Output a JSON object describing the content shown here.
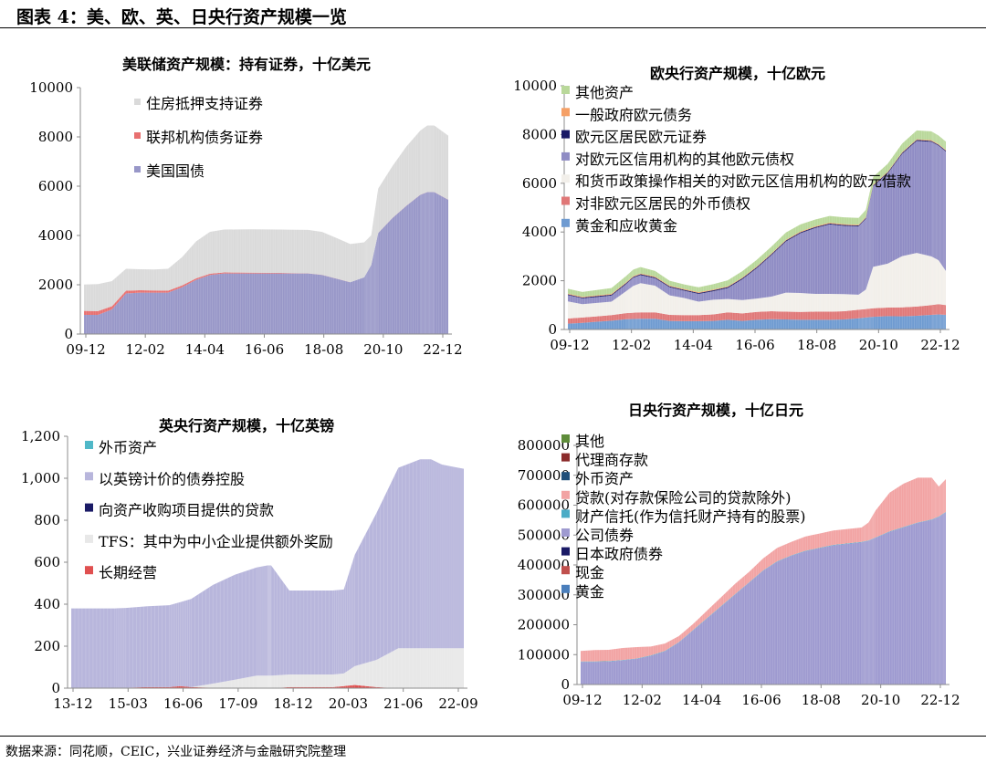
{
  "figure_title": "图表 4：美、欧、英、日央行资产规模一览",
  "source": "数据来源：同花顺，CEIC，兴业证券经济与金融研究院整理",
  "chart_data": [
    {
      "id": "fed",
      "type": "area",
      "stacked": true,
      "title": "美联储资产规模：持有证券，十亿美元",
      "xlabel": "",
      "ylabel": "",
      "ylim": [
        0,
        10000
      ],
      "yticks": [
        "0",
        "2000",
        "4000",
        "6000",
        "8000",
        "10000"
      ],
      "x": [
        "09-12",
        "10-06",
        "10-12",
        "11-06",
        "11-12",
        "12-06",
        "12-12",
        "13-06",
        "13-12",
        "14-06",
        "14-12",
        "15-06",
        "15-12",
        "16-06",
        "16-12",
        "17-06",
        "17-12",
        "18-06",
        "18-12",
        "19-06",
        "19-12",
        "20-03",
        "20-06",
        "20-12",
        "21-06",
        "21-12",
        "22-03",
        "22-06",
        "22-12"
      ],
      "xticks": [
        "09-12",
        "12-02",
        "14-04",
        "16-06",
        "18-08",
        "20-10",
        "22-12"
      ],
      "legend_position": "top-left",
      "grid": false,
      "series": [
        {
          "name": "美国国债",
          "color": "#9897c8",
          "values": [
            780,
            780,
            1000,
            1650,
            1680,
            1680,
            1680,
            1900,
            2200,
            2400,
            2460,
            2460,
            2460,
            2460,
            2460,
            2460,
            2460,
            2400,
            2250,
            2100,
            2300,
            2800,
            4100,
            4700,
            5200,
            5650,
            5760,
            5760,
            5450
          ]
        },
        {
          "name": "联邦机构债务证券",
          "color": "#e87070",
          "values": [
            160,
            150,
            130,
            110,
            100,
            90,
            80,
            70,
            60,
            50,
            40,
            35,
            30,
            25,
            20,
            10,
            5,
            5,
            3,
            3,
            3,
            3,
            3,
            3,
            3,
            3,
            3,
            3,
            3
          ]
        },
        {
          "name": "住房抵押支持证券",
          "color": "#dadada",
          "values": [
            1070,
            1100,
            1020,
            890,
            850,
            850,
            890,
            1150,
            1500,
            1700,
            1740,
            1750,
            1760,
            1760,
            1760,
            1760,
            1760,
            1740,
            1650,
            1550,
            1420,
            1200,
            1800,
            2100,
            2400,
            2600,
            2700,
            2700,
            2600
          ]
        }
      ]
    },
    {
      "id": "ecb",
      "type": "area",
      "stacked": true,
      "title": "欧央行资产规模，十亿欧元",
      "xlabel": "",
      "ylabel": "",
      "ylim": [
        0,
        10000
      ],
      "yticks": [
        "0",
        "2000",
        "4000",
        "6000",
        "8000",
        "10000"
      ],
      "x": [
        "09-12",
        "10-06",
        "10-12",
        "11-06",
        "11-12",
        "12-03",
        "12-06",
        "12-12",
        "13-06",
        "13-12",
        "14-06",
        "14-12",
        "15-06",
        "15-12",
        "16-06",
        "16-12",
        "17-06",
        "17-12",
        "18-06",
        "18-12",
        "19-06",
        "19-12",
        "20-03",
        "20-06",
        "20-12",
        "21-06",
        "21-12",
        "22-06",
        "22-09",
        "22-12"
      ],
      "xticks": [
        "09-12",
        "12-02",
        "14-04",
        "16-06",
        "18-08",
        "20-10",
        "22-12"
      ],
      "legend_position": "top-left",
      "grid": false,
      "series": [
        {
          "name": "黄金和应收黄金",
          "color": "#6f9bd1",
          "values": [
            240,
            270,
            320,
            360,
            420,
            430,
            440,
            440,
            350,
            340,
            340,
            350,
            400,
            350,
            400,
            420,
            410,
            400,
            400,
            400,
            410,
            460,
            490,
            520,
            550,
            540,
            560,
            600,
            620,
            600
          ]
        },
        {
          "name": "对非欧元区居民的外币债权",
          "color": "#e07878",
          "values": [
            210,
            220,
            220,
            230,
            250,
            260,
            260,
            260,
            250,
            250,
            250,
            270,
            300,
            310,
            320,
            330,
            320,
            320,
            330,
            330,
            340,
            350,
            350,
            350,
            350,
            370,
            380,
            400,
            420,
            400
          ]
        },
        {
          "name": "和货币政策操作相关的对欧元区信用机构的欧元借款",
          "color": "#f2efea",
          "values": [
            700,
            550,
            550,
            550,
            900,
            1100,
            1200,
            1100,
            800,
            700,
            550,
            600,
            550,
            550,
            550,
            600,
            780,
            780,
            730,
            730,
            700,
            620,
            800,
            1700,
            1800,
            2100,
            2200,
            2000,
            1800,
            1400
          ]
        },
        {
          "name": "对欧元区信用机构的其他欧元债权",
          "color": "#8f8cc4",
          "values": [
            260,
            240,
            240,
            250,
            290,
            330,
            330,
            300,
            330,
            300,
            320,
            350,
            450,
            850,
            1250,
            1700,
            2100,
            2450,
            2700,
            2850,
            2800,
            2800,
            2900,
            3300,
            3700,
            4200,
            4600,
            4700,
            4700,
            4900
          ]
        },
        {
          "name": "欧元区居民欧元证券",
          "color": "#1a1a66",
          "values": [
            30,
            30,
            40,
            40,
            40,
            40,
            40,
            40,
            40,
            40,
            40,
            40,
            40,
            40,
            40,
            40,
            40,
            40,
            40,
            40,
            40,
            40,
            40,
            40,
            40,
            40,
            40,
            40,
            40,
            40
          ]
        },
        {
          "name": "一般政府欧元债务",
          "color": "#f5a066",
          "values": [
            30,
            30,
            30,
            30,
            30,
            30,
            30,
            30,
            30,
            30,
            30,
            30,
            30,
            30,
            30,
            30,
            30,
            30,
            30,
            30,
            30,
            30,
            30,
            30,
            30,
            30,
            30,
            30,
            30,
            30
          ]
        },
        {
          "name": "其他资产",
          "color": "#b9d89a",
          "values": [
            200,
            200,
            220,
            240,
            260,
            270,
            260,
            230,
            200,
            190,
            200,
            220,
            250,
            260,
            270,
            280,
            300,
            290,
            280,
            280,
            280,
            280,
            300,
            320,
            330,
            350,
            360,
            360,
            350,
            340
          ]
        }
      ]
    },
    {
      "id": "boe",
      "type": "area",
      "stacked": true,
      "title": "英央行资产规模，十亿英镑",
      "xlabel": "",
      "ylabel": "",
      "ylim": [
        0,
        1200
      ],
      "yticks": [
        "0",
        "200",
        "400",
        "600",
        "800",
        "1,000",
        "1,200"
      ],
      "x": [
        "13-12",
        "14-06",
        "14-12",
        "15-03",
        "15-09",
        "16-03",
        "16-06",
        "16-09",
        "17-03",
        "17-09",
        "18-03",
        "18-06",
        "18-07",
        "18-12",
        "19-06",
        "19-12",
        "20-03",
        "20-06",
        "20-12",
        "21-06",
        "21-12",
        "22-03",
        "22-06",
        "22-09",
        "22-12"
      ],
      "xticks": [
        "13-12",
        "15-03",
        "16-06",
        "17-09",
        "18-12",
        "20-03",
        "21-06",
        "22-09"
      ],
      "legend_position": "top-left",
      "grid": false,
      "series": [
        {
          "name": "长期经营",
          "color": "#e05050",
          "values": [
            0,
            0,
            0,
            2,
            5,
            5,
            10,
            5,
            2,
            0,
            0,
            0,
            0,
            5,
            5,
            5,
            10,
            15,
            5,
            0,
            0,
            0,
            0,
            0,
            0
          ]
        },
        {
          "name": "TFS：其中为中小企业提供额外奖励",
          "color": "#e8e8e8",
          "values": [
            0,
            0,
            0,
            0,
            0,
            0,
            0,
            0,
            20,
            40,
            60,
            60,
            60,
            60,
            60,
            60,
            60,
            90,
            130,
            190,
            190,
            190,
            190,
            190,
            190
          ]
        },
        {
          "name": "向资产收购项目提供的贷款",
          "color": "#1a1a66",
          "values": [
            0,
            0,
            0,
            0,
            0,
            0,
            0,
            0,
            0,
            0,
            0,
            0,
            0,
            0,
            0,
            0,
            0,
            0,
            0,
            0,
            0,
            0,
            0,
            0,
            0
          ]
        },
        {
          "name": "以英镑计价的债券控股",
          "color": "#b8b6dc",
          "values": [
            380,
            380,
            380,
            380,
            385,
            390,
            400,
            420,
            470,
            500,
            515,
            525,
            525,
            400,
            400,
            400,
            400,
            530,
            700,
            860,
            900,
            900,
            875,
            865,
            855
          ]
        },
        {
          "name": "外币资产",
          "color": "#50b8c8",
          "values": [
            0,
            0,
            0,
            0,
            0,
            0,
            0,
            0,
            0,
            0,
            0,
            0,
            0,
            0,
            0,
            0,
            0,
            0,
            0,
            0,
            0,
            0,
            0,
            0,
            0
          ]
        }
      ]
    },
    {
      "id": "boj",
      "type": "area",
      "stacked": true,
      "title": "日央行资产规模，十亿日元",
      "xlabel": "",
      "ylabel": "",
      "ylim": [
        0,
        800000
      ],
      "yticks": [
        "0",
        "100000",
        "200000",
        "300000",
        "400000",
        "500000",
        "600000",
        "700000",
        "800000"
      ],
      "x": [
        "09-12",
        "10-06",
        "10-12",
        "11-06",
        "11-12",
        "12-06",
        "12-12",
        "13-06",
        "13-12",
        "14-06",
        "14-12",
        "15-06",
        "15-12",
        "16-06",
        "16-12",
        "17-06",
        "17-12",
        "18-06",
        "18-12",
        "19-06",
        "19-12",
        "20-03",
        "20-06",
        "20-12",
        "21-06",
        "21-12",
        "22-06",
        "22-09",
        "22-12"
      ],
      "xticks": [
        "09-12",
        "12-02",
        "14-04",
        "16-06",
        "18-08",
        "20-10",
        "22-12"
      ],
      "legend_position": "top-left",
      "grid": false,
      "series": [
        {
          "name": "黄金",
          "color": "#4a7ebb",
          "values": [
            441,
            441,
            441,
            441,
            441,
            441,
            441,
            441,
            441,
            441,
            441,
            441,
            441,
            441,
            441,
            441,
            441,
            441,
            441,
            441,
            441,
            441,
            441,
            441,
            441,
            441,
            441,
            441,
            441
          ]
        },
        {
          "name": "现金",
          "color": "#c0504d",
          "values": [
            300,
            300,
            300,
            300,
            300,
            300,
            300,
            300,
            300,
            300,
            300,
            300,
            300,
            300,
            300,
            300,
            300,
            300,
            300,
            300,
            300,
            300,
            300,
            300,
            300,
            300,
            300,
            300,
            300
          ]
        },
        {
          "name": "日本政府债券",
          "color": "#1a1a66",
          "values": [
            0,
            0,
            0,
            0,
            0,
            0,
            0,
            0,
            0,
            0,
            0,
            0,
            0,
            0,
            0,
            0,
            0,
            0,
            0,
            0,
            0,
            0,
            0,
            0,
            0,
            0,
            0,
            0,
            0
          ]
        },
        {
          "name": "公司债券",
          "color": "#9e9ad0",
          "values": [
            75000,
            75000,
            76000,
            80000,
            85000,
            95000,
            110000,
            140000,
            180000,
            220000,
            260000,
            300000,
            340000,
            380000,
            410000,
            430000,
            445000,
            455000,
            465000,
            470000,
            475000,
            480000,
            490000,
            510000,
            525000,
            540000,
            550000,
            560000,
            575000
          ]
        },
        {
          "name": "财产信托(作为信托财产持有的股票)",
          "color": "#4bacc6",
          "values": [
            1400,
            1400,
            1400,
            1400,
            1400,
            1400,
            1400,
            1400,
            1400,
            1400,
            1400,
            1400,
            1400,
            1400,
            1400,
            1400,
            1400,
            1400,
            1400,
            1400,
            1400,
            1400,
            1400,
            1400,
            1400,
            1400,
            1400,
            1400,
            1400
          ]
        },
        {
          "name": "贷款(对存款保险公司的贷款除外)",
          "color": "#f2a3a3",
          "values": [
            35000,
            38000,
            38000,
            40000,
            38000,
            30000,
            25000,
            20000,
            20000,
            25000,
            30000,
            35000,
            35000,
            40000,
            45000,
            45000,
            48000,
            48000,
            48000,
            48000,
            48000,
            60000,
            90000,
            130000,
            145000,
            150000,
            140000,
            100000,
            110000
          ]
        },
        {
          "name": "外币资产",
          "color": "#1f4e79",
          "values": [
            0,
            0,
            0,
            0,
            0,
            0,
            0,
            0,
            0,
            0,
            0,
            0,
            0,
            0,
            0,
            0,
            0,
            0,
            0,
            0,
            0,
            0,
            0,
            0,
            0,
            0,
            0,
            0,
            0
          ]
        },
        {
          "name": "代理商存款",
          "color": "#8b2c2c",
          "values": [
            0,
            0,
            0,
            0,
            0,
            0,
            0,
            0,
            0,
            0,
            0,
            0,
            0,
            0,
            0,
            0,
            0,
            0,
            0,
            0,
            0,
            0,
            0,
            0,
            0,
            0,
            0,
            0,
            0
          ]
        },
        {
          "name": "其他",
          "color": "#5e8c3a",
          "values": [
            0,
            0,
            0,
            0,
            0,
            0,
            0,
            0,
            0,
            0,
            0,
            0,
            0,
            0,
            0,
            0,
            0,
            0,
            0,
            0,
            0,
            0,
            0,
            0,
            0,
            0,
            0,
            0,
            0
          ]
        }
      ]
    }
  ]
}
